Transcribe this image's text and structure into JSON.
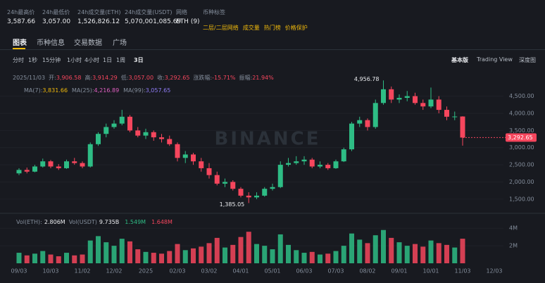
{
  "header": {
    "stats": [
      {
        "label": "24h最高价",
        "value": "3,587.66"
      },
      {
        "label": "24h最低价",
        "value": "3,057.00"
      },
      {
        "label": "24h成交量(ETH)",
        "value": "1,526,826.12"
      },
      {
        "label": "24h成交量(USDT)",
        "value": "5,070,001,085.69"
      },
      {
        "label": "网络",
        "value": "ETH (9)"
      }
    ],
    "tags_label": "币种标签",
    "tags": [
      "二层/二层网络",
      "成交量",
      "热门榜",
      "价格保护"
    ]
  },
  "tabs": [
    "图表",
    "币种信息",
    "交易数据",
    "广场"
  ],
  "toolbar": {
    "intervals": [
      "分时",
      "1秒",
      "15分钟",
      "1小时",
      "4小时",
      "1日",
      "1周",
      "3日"
    ],
    "views": [
      "基本版",
      "Trading View",
      "深度图"
    ]
  },
  "info": {
    "date": "2025/11/03",
    "items": [
      {
        "label": "开:",
        "value": "3,906.58"
      },
      {
        "label": "高:",
        "value": "3,914.29"
      },
      {
        "label": "低:",
        "value": "3,057.00"
      },
      {
        "label": "收:",
        "value": "3,292.65"
      },
      {
        "label": "涨跌幅:",
        "value": "-15.71%"
      },
      {
        "label": "振幅:",
        "value": "21.94%"
      }
    ]
  },
  "ma": [
    {
      "label": "MA(7):",
      "value": "3,831.66",
      "color": "#f0b90b"
    },
    {
      "label": "MA(25):",
      "value": "4,216.89",
      "color": "#e05fc1"
    },
    {
      "label": "MA(99):",
      "value": "3,057.65",
      "color": "#8f7cf5"
    }
  ],
  "vol_info": [
    {
      "label": "Vol(ETH):",
      "value": "2.806M"
    },
    {
      "label": "Vol(USDT)",
      "value": "9.735B"
    },
    {
      "label": "",
      "value": "1.549M"
    },
    {
      "label": "",
      "value": "1.648M"
    }
  ],
  "chart_data": {
    "type": "candlestick",
    "watermark": "BINANCE",
    "up_color": "#2ebd85",
    "down_color": "#f6465d",
    "categories": [
      "09/03",
      null,
      null,
      null,
      "10/03",
      null,
      null,
      null,
      "11/02",
      null,
      null,
      null,
      "12/02",
      null,
      null,
      null,
      "2025",
      null,
      null,
      null,
      "02/03",
      null,
      null,
      null,
      "03/02",
      null,
      null,
      null,
      "04/01",
      null,
      null,
      null,
      "05/01",
      null,
      null,
      null,
      "06/03",
      null,
      null,
      null,
      "07/03",
      null,
      null,
      null,
      "08/02",
      null,
      null,
      null,
      "09/01",
      null,
      null,
      null,
      "10/01",
      null,
      null,
      null,
      "11/03",
      null,
      null,
      null,
      "12/03"
    ],
    "open": [
      2250,
      2350,
      2300,
      2450,
      2600,
      2450,
      2400,
      2600,
      2550,
      2450,
      3100,
      3400,
      3600,
      3700,
      3900,
      3500,
      3350,
      3450,
      3300,
      3250,
      3100,
      2700,
      2800,
      2600,
      2400,
      2200,
      1950,
      2000,
      1800,
      1600,
      1550,
      1600,
      1800,
      1850,
      2500,
      2550,
      2600,
      2650,
      2450,
      2500,
      2400,
      2600,
      2950,
      3700,
      3800,
      3600,
      4300,
      4700,
      4400,
      4450,
      4500,
      4300,
      4200,
      4400,
      4100,
      3900,
      3906.58,
      null,
      null,
      null,
      null
    ],
    "high": [
      2400,
      2420,
      2500,
      2680,
      2640,
      2520,
      2650,
      2700,
      2600,
      3150,
      3450,
      3700,
      3800,
      4100,
      3950,
      3600,
      3550,
      3500,
      3400,
      3350,
      3150,
      2900,
      2850,
      2700,
      2550,
      2300,
      2100,
      2050,
      1850,
      1700,
      1700,
      1850,
      1950,
      2600,
      2700,
      2750,
      2750,
      2700,
      2600,
      2550,
      2650,
      3000,
      3750,
      3900,
      3850,
      4400,
      4956.78,
      4780,
      4550,
      4650,
      4600,
      4400,
      4750,
      4500,
      4200,
      4050,
      3914.29,
      null,
      null,
      null,
      null
    ],
    "low": [
      2200,
      2250,
      2280,
      2420,
      2400,
      2350,
      2380,
      2500,
      2400,
      2420,
      3050,
      3300,
      3550,
      3650,
      3450,
      3300,
      3250,
      3200,
      3150,
      3050,
      2600,
      2550,
      2500,
      2300,
      2100,
      1900,
      1850,
      1750,
      1550,
      1385.05,
      1500,
      1570,
      1750,
      1820,
      2450,
      2500,
      2500,
      2400,
      2400,
      2350,
      2380,
      2580,
      2900,
      3600,
      3500,
      3550,
      4250,
      4300,
      4300,
      4350,
      4250,
      4100,
      4150,
      4000,
      3800,
      3800,
      3057.0,
      null,
      null,
      null,
      null
    ],
    "close": [
      2350,
      2300,
      2450,
      2600,
      2450,
      2400,
      2600,
      2550,
      2450,
      3100,
      3400,
      3600,
      3700,
      3900,
      3500,
      3350,
      3450,
      3300,
      3250,
      3100,
      2700,
      2800,
      2600,
      2400,
      2200,
      1950,
      2000,
      1800,
      1600,
      1550,
      1600,
      1800,
      1850,
      2500,
      2550,
      2600,
      2650,
      2450,
      2500,
      2400,
      2600,
      2950,
      3700,
      3800,
      3600,
      4300,
      4700,
      4400,
      4450,
      4500,
      4300,
      4200,
      4400,
      4100,
      3900,
      3906.58,
      3292.65,
      null,
      null,
      null,
      null
    ],
    "volume": [
      1.2,
      0.9,
      1.1,
      1.4,
      1.0,
      0.8,
      1.2,
      0.9,
      1.0,
      2.6,
      3.1,
      2.4,
      2.0,
      2.8,
      2.5,
      1.6,
      1.3,
      1.2,
      1.1,
      1.4,
      2.2,
      1.5,
      1.7,
      1.9,
      2.3,
      2.9,
      1.8,
      2.1,
      3.0,
      3.6,
      2.2,
      2.0,
      1.6,
      3.3,
      2.1,
      1.5,
      1.2,
      1.3,
      1.0,
      1.1,
      1.4,
      2.0,
      3.4,
      2.7,
      2.3,
      3.2,
      3.8,
      2.9,
      2.4,
      2.0,
      2.2,
      1.9,
      2.6,
      2.3,
      2.1,
      1.8,
      2.806,
      null,
      null,
      null,
      null
    ],
    "ylim": [
      1250,
      5250
    ],
    "yticks": [
      {
        "value": 1500,
        "label": "1,500.00"
      },
      {
        "value": 2000,
        "label": "2,000.00"
      },
      {
        "value": 2500,
        "label": "2,500.00"
      },
      {
        "value": 3000,
        "label": "3,000.00"
      },
      {
        "value": 3500,
        "label": "3,500.00"
      },
      {
        "value": 4000,
        "label": "4,000.00"
      },
      {
        "value": 4500,
        "label": "4,500.00"
      }
    ],
    "vol_ylim": [
      0,
      4.5
    ],
    "vol_yticks": [
      {
        "value": 2,
        "label": "2M"
      },
      {
        "value": 4,
        "label": "4M"
      }
    ],
    "annotations": [
      {
        "label": "4,956.78",
        "value": 4956.78
      },
      {
        "label": "1,385.05",
        "value": 1385.05
      }
    ],
    "last_price": {
      "value": 3292.65,
      "label": "3,292.65"
    }
  }
}
